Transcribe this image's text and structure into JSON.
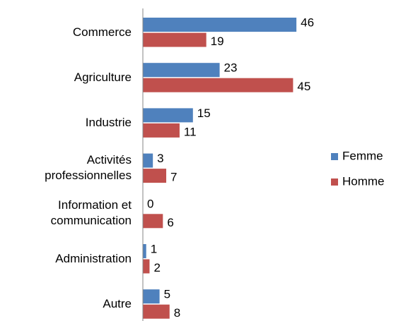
{
  "chart_data": {
    "type": "bar",
    "orientation": "horizontal",
    "categories": [
      "Commerce",
      "Agriculture",
      "Industrie",
      "Activités professionnelles",
      "Information et communication",
      "Administration",
      "Autre"
    ],
    "series": [
      {
        "name": "Femme",
        "color": "#4f81bd",
        "values": [
          46,
          23,
          15,
          3,
          0,
          1,
          5
        ]
      },
      {
        "name": "Homme",
        "color": "#c0504d",
        "values": [
          19,
          45,
          11,
          7,
          6,
          2,
          8
        ]
      }
    ],
    "xlim": [
      0,
      50
    ],
    "legend": "right"
  }
}
